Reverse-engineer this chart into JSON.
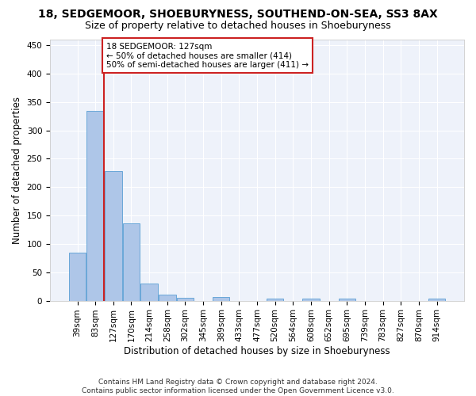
{
  "title": "18, SEDGEMOOR, SHOEBURYNESS, SOUTHEND-ON-SEA, SS3 8AX",
  "subtitle": "Size of property relative to detached houses in Shoeburyness",
  "xlabel": "Distribution of detached houses by size in Shoeburyness",
  "ylabel": "Number of detached properties",
  "categories": [
    "39sqm",
    "83sqm",
    "127sqm",
    "170sqm",
    "214sqm",
    "258sqm",
    "302sqm",
    "345sqm",
    "389sqm",
    "433sqm",
    "477sqm",
    "520sqm",
    "564sqm",
    "608sqm",
    "652sqm",
    "695sqm",
    "739sqm",
    "783sqm",
    "827sqm",
    "870sqm",
    "914sqm"
  ],
  "values": [
    85,
    335,
    229,
    136,
    30,
    11,
    5,
    0,
    6,
    0,
    0,
    4,
    0,
    4,
    0,
    4,
    0,
    0,
    0,
    0,
    4
  ],
  "bar_color": "#aec6e8",
  "bar_edge_color": "#5a9fd4",
  "vline_x": 1.5,
  "vline_color": "#cc2222",
  "annotation_box_text": "18 SEDGEMOOR: 127sqm\n← 50% of detached houses are smaller (414)\n50% of semi-detached houses are larger (411) →",
  "annotation_box_color": "#cc2222",
  "ylim": [
    0,
    460
  ],
  "yticks": [
    0,
    50,
    100,
    150,
    200,
    250,
    300,
    350,
    400,
    450
  ],
  "background_color": "#eef2fa",
  "grid_color": "#ffffff",
  "footer": "Contains HM Land Registry data © Crown copyright and database right 2024.\nContains public sector information licensed under the Open Government Licence v3.0.",
  "title_fontsize": 10,
  "subtitle_fontsize": 9,
  "xlabel_fontsize": 8.5,
  "ylabel_fontsize": 8.5,
  "tick_fontsize": 7.5,
  "footer_fontsize": 6.5
}
